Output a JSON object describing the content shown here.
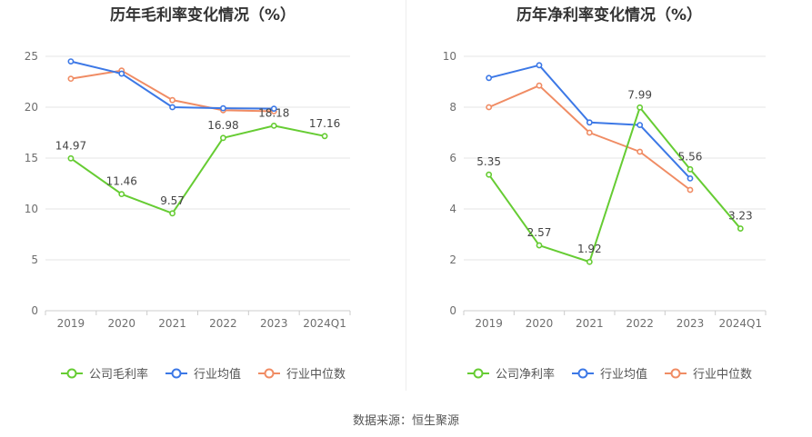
{
  "colors": {
    "company": "#66cc33",
    "industry_avg": "#3c78e6",
    "industry_median": "#f08c64"
  },
  "source": "数据来源：恒生聚源",
  "chart_data": [
    {
      "type": "line",
      "title": "历年毛利率变化情况（%）",
      "categories": [
        "2019",
        "2020",
        "2021",
        "2022",
        "2023",
        "2024Q1"
      ],
      "ylim": [
        0,
        25
      ],
      "yticks": [
        0,
        5,
        10,
        15,
        20,
        25
      ],
      "grid": true,
      "legend_position": "bottom",
      "series": [
        {
          "name": "公司毛利率",
          "values": [
            14.97,
            11.46,
            9.57,
            16.98,
            18.18,
            17.16
          ],
          "labels": [
            "14.97",
            "11.46",
            "9.57",
            "16.98",
            "18.18",
            "17.16"
          ]
        },
        {
          "name": "行业均值",
          "values": [
            24.5,
            23.3,
            20.0,
            19.9,
            19.85,
            null
          ]
        },
        {
          "name": "行业中位数",
          "values": [
            22.8,
            23.6,
            20.7,
            19.7,
            19.6,
            null
          ]
        }
      ]
    },
    {
      "type": "line",
      "title": "历年净利率变化情况（%）",
      "categories": [
        "2019",
        "2020",
        "2021",
        "2022",
        "2023",
        "2024Q1"
      ],
      "ylim": [
        0,
        10
      ],
      "yticks": [
        0,
        2,
        4,
        6,
        8,
        10
      ],
      "grid": true,
      "legend_position": "bottom",
      "series": [
        {
          "name": "公司净利率",
          "values": [
            5.35,
            2.57,
            1.92,
            7.99,
            5.56,
            3.23
          ],
          "labels": [
            "5.35",
            "2.57",
            "1.92",
            "7.99",
            "5.56",
            "3.23"
          ]
        },
        {
          "name": "行业均值",
          "values": [
            9.15,
            9.65,
            7.4,
            7.3,
            5.2,
            null
          ]
        },
        {
          "name": "行业中位数",
          "values": [
            8.0,
            8.85,
            7.0,
            6.25,
            4.75,
            null
          ]
        }
      ]
    }
  ]
}
